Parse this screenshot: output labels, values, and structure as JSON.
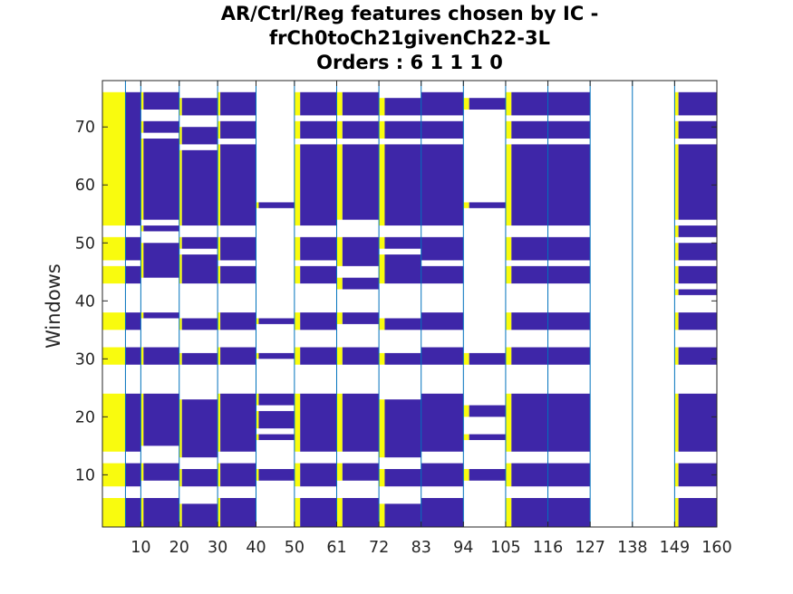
{
  "chart_data": {
    "type": "heatmap",
    "title_lines": [
      "AR/Ctrl/Reg features chosen by IC -",
      "frCh0toCh21givenCh22-3L",
      "Orders : 6 1 1 1 0"
    ],
    "xlabel": "",
    "ylabel": "Windows",
    "xlim": [
      0,
      160
    ],
    "ylim": [
      1,
      78
    ],
    "x_ticks": [
      10,
      20,
      30,
      40,
      50,
      61,
      72,
      83,
      94,
      105,
      116,
      127,
      138,
      149,
      160
    ],
    "y_ticks": [
      10,
      20,
      30,
      40,
      50,
      60,
      70
    ],
    "colors": {
      "yellow": "#F9FB0E",
      "blue": "#3E26A8",
      "empty": "#FFFFFF",
      "separator": "#0072BD"
    },
    "separators": [
      6,
      10,
      20,
      30,
      40,
      50,
      61,
      72,
      83,
      94,
      105,
      116,
      127,
      138,
      149,
      160
    ],
    "blocks": [
      {
        "x0": 0,
        "x1": 6,
        "yellow": 6,
        "windows": [
          [
            1,
            6
          ],
          [
            8,
            12
          ],
          [
            14,
            24
          ],
          [
            29,
            32
          ],
          [
            35,
            38
          ],
          [
            43,
            46
          ],
          [
            47,
            51
          ],
          [
            53,
            76
          ]
        ]
      },
      {
        "x0": 6,
        "x1": 10,
        "yellow": 0,
        "windows": [
          [
            1,
            6
          ],
          [
            8,
            12
          ],
          [
            14,
            24
          ],
          [
            29,
            32
          ],
          [
            35,
            38
          ],
          [
            43,
            46
          ],
          [
            47,
            51
          ],
          [
            53,
            76
          ]
        ]
      },
      {
        "x0": 10,
        "x1": 20,
        "yellow": 0.7,
        "windows": [
          [
            1,
            6
          ],
          [
            9,
            12
          ],
          [
            15,
            24
          ],
          [
            29,
            32
          ],
          [
            37,
            38
          ],
          [
            44,
            50
          ],
          [
            52,
            53
          ],
          [
            54,
            68
          ],
          [
            69,
            71
          ],
          [
            73,
            76
          ]
        ]
      },
      {
        "x0": 20,
        "x1": 30,
        "yellow": 0.7,
        "windows": [
          [
            1,
            5
          ],
          [
            8,
            11
          ],
          [
            13,
            23
          ],
          [
            29,
            31
          ],
          [
            35,
            37
          ],
          [
            43,
            48
          ],
          [
            49,
            51
          ],
          [
            53,
            66
          ],
          [
            67,
            70
          ],
          [
            72,
            75
          ]
        ]
      },
      {
        "x0": 30,
        "x1": 40,
        "yellow": 0.7,
        "windows": [
          [
            1,
            6
          ],
          [
            8,
            12
          ],
          [
            14,
            24
          ],
          [
            29,
            32
          ],
          [
            35,
            38
          ],
          [
            43,
            46
          ],
          [
            47,
            51
          ],
          [
            53,
            67
          ],
          [
            68,
            71
          ],
          [
            72,
            76
          ]
        ]
      },
      {
        "x0": 40,
        "x1": 50,
        "yellow": 0.7,
        "windows": [
          [
            9,
            11
          ],
          [
            16,
            17
          ],
          [
            18,
            21
          ],
          [
            22,
            24
          ],
          [
            30,
            31
          ],
          [
            36,
            37
          ],
          [
            56,
            57
          ]
        ]
      },
      {
        "x0": 50,
        "x1": 61,
        "yellow": 1.5,
        "windows": [
          [
            1,
            6
          ],
          [
            8,
            12
          ],
          [
            14,
            24
          ],
          [
            29,
            32
          ],
          [
            35,
            38
          ],
          [
            43,
            46
          ],
          [
            47,
            51
          ],
          [
            53,
            67
          ],
          [
            68,
            71
          ],
          [
            72,
            76
          ]
        ]
      },
      {
        "x0": 61,
        "x1": 72,
        "yellow": 1.5,
        "windows": [
          [
            1,
            6
          ],
          [
            9,
            12
          ],
          [
            14,
            24
          ],
          [
            29,
            32
          ],
          [
            36,
            38
          ],
          [
            42,
            44
          ],
          [
            46,
            51
          ],
          [
            54,
            67
          ],
          [
            68,
            71
          ],
          [
            72,
            76
          ]
        ]
      },
      {
        "x0": 72,
        "x1": 83,
        "yellow": 1.5,
        "windows": [
          [
            1,
            5
          ],
          [
            8,
            11
          ],
          [
            13,
            23
          ],
          [
            29,
            31
          ],
          [
            35,
            37
          ],
          [
            43,
            48
          ],
          [
            49,
            51
          ],
          [
            53,
            67
          ],
          [
            68,
            71
          ],
          [
            72,
            75
          ]
        ]
      },
      {
        "x0": 83,
        "x1": 94,
        "yellow": 0,
        "windows": [
          [
            1,
            6
          ],
          [
            8,
            12
          ],
          [
            14,
            24
          ],
          [
            29,
            32
          ],
          [
            35,
            38
          ],
          [
            43,
            46
          ],
          [
            47,
            51
          ],
          [
            53,
            67
          ],
          [
            68,
            71
          ],
          [
            72,
            76
          ]
        ]
      },
      {
        "x0": 94,
        "x1": 105,
        "yellow": 1.5,
        "windows": [
          [
            9,
            11
          ],
          [
            16,
            17
          ],
          [
            20,
            22
          ],
          [
            29,
            31
          ],
          [
            56,
            57
          ],
          [
            73,
            75
          ]
        ]
      },
      {
        "x0": 105,
        "x1": 116,
        "yellow": 1.5,
        "windows": [
          [
            1,
            6
          ],
          [
            8,
            12
          ],
          [
            14,
            24
          ],
          [
            29,
            32
          ],
          [
            35,
            38
          ],
          [
            43,
            46
          ],
          [
            47,
            51
          ],
          [
            53,
            67
          ],
          [
            68,
            71
          ],
          [
            72,
            76
          ]
        ]
      },
      {
        "x0": 116,
        "x1": 127,
        "yellow": 0,
        "windows": [
          [
            1,
            6
          ],
          [
            8,
            12
          ],
          [
            14,
            24
          ],
          [
            29,
            32
          ],
          [
            35,
            38
          ],
          [
            43,
            46
          ],
          [
            47,
            51
          ],
          [
            53,
            67
          ],
          [
            68,
            71
          ],
          [
            72,
            76
          ]
        ]
      },
      {
        "x0": 127,
        "x1": 138,
        "yellow": 0,
        "windows": []
      },
      {
        "x0": 138,
        "x1": 149,
        "yellow": 0,
        "windows": []
      },
      {
        "x0": 149,
        "x1": 160,
        "yellow": 1,
        "windows": [
          [
            1,
            6
          ],
          [
            8,
            12
          ],
          [
            14,
            24
          ],
          [
            29,
            32
          ],
          [
            35,
            38
          ],
          [
            41,
            42
          ],
          [
            43,
            46
          ],
          [
            47,
            50
          ],
          [
            51,
            53
          ],
          [
            54,
            67
          ],
          [
            68,
            71
          ],
          [
            72,
            76
          ]
        ]
      }
    ],
    "grid": false,
    "legend": "none"
  }
}
